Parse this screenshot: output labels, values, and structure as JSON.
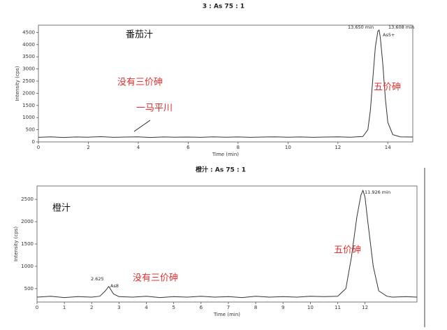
{
  "chart_data": [
    {
      "type": "line",
      "title": "3 : As 75 : 1",
      "x_label": "Time (min)",
      "y_label": "Intensity (cps)",
      "xlim": [
        0,
        15
      ],
      "xticks": [
        0,
        2,
        4,
        6,
        8,
        10,
        12,
        14
      ],
      "ylim": [
        0,
        4800
      ],
      "yticks": [
        0,
        500,
        1000,
        1500,
        2000,
        2500,
        3000,
        3500,
        4000,
        4500
      ],
      "series": [
        {
          "color": "#333333",
          "x": [
            0,
            0.5,
            1,
            1.5,
            2,
            2.5,
            3,
            3.5,
            4,
            4.5,
            5,
            5.5,
            6,
            6.5,
            7,
            7.5,
            8,
            8.5,
            9,
            9.5,
            10,
            10.5,
            11,
            11.5,
            12,
            12.5,
            13,
            13.2,
            13.3,
            13.4,
            13.5,
            13.6,
            13.65,
            13.7,
            13.8,
            13.9,
            14,
            14.2,
            14.5,
            15
          ],
          "values": [
            190,
            210,
            185,
            205,
            195,
            215,
            190,
            200,
            210,
            185,
            205,
            195,
            200,
            190,
            210,
            195,
            205,
            190,
            200,
            210,
            195,
            205,
            190,
            200,
            210,
            195,
            220,
            500,
            1300,
            2600,
            3900,
            4550,
            4600,
            4300,
            3200,
            1800,
            800,
            300,
            210,
            200
          ]
        }
      ],
      "annotations": [
        {
          "text": "番茄汁",
          "color": "#111111"
        },
        {
          "text": "没有三价砷",
          "color": "#e03030"
        },
        {
          "text": "一马平川",
          "color": "#e03030"
        },
        {
          "text": "五价砷",
          "color": "#e03030"
        },
        {
          "text": "13.650 min",
          "color": "#222222"
        },
        {
          "text": "13.608 min",
          "color": "#222222"
        },
        {
          "text": "As5+",
          "color": "#222222"
        }
      ]
    },
    {
      "type": "line",
      "title": "橙汁 : As 75 : 1",
      "x_label": "Time (min)",
      "y_label": "Intensity (cps)",
      "xlim": [
        0,
        13.9
      ],
      "xticks": [
        0,
        1,
        2,
        3,
        4,
        5,
        6,
        7,
        8,
        9,
        10,
        11,
        12
      ],
      "ylim": [
        200,
        2800
      ],
      "yticks": [
        500,
        1000,
        1500,
        2000,
        2500
      ],
      "series": [
        {
          "color": "#333333",
          "x": [
            0,
            0.5,
            1,
            1.5,
            2,
            2.3,
            2.5,
            2.625,
            2.8,
            3,
            3.5,
            4,
            4.5,
            5,
            5.5,
            6,
            6.5,
            7,
            7.5,
            8,
            8.5,
            9,
            9.5,
            10,
            10.5,
            11,
            11.3,
            11.5,
            11.7,
            11.85,
            11.926,
            12,
            12.1,
            12.3,
            12.5,
            12.8,
            13,
            13.5,
            13.9
          ],
          "values": [
            310,
            330,
            300,
            320,
            310,
            330,
            450,
            550,
            380,
            320,
            310,
            330,
            300,
            320,
            310,
            330,
            310,
            320,
            300,
            330,
            310,
            320,
            310,
            330,
            320,
            330,
            500,
            1200,
            2100,
            2600,
            2700,
            2550,
            2000,
            1000,
            450,
            330,
            310,
            320,
            310
          ]
        }
      ],
      "annotations": [
        {
          "text": "橙汁",
          "color": "#111111"
        },
        {
          "text": "五价砷",
          "color": "#e03030"
        },
        {
          "text": "没有三价砷",
          "color": "#e03030"
        },
        {
          "text": "2.625",
          "color": "#222222"
        },
        {
          "text": "As8",
          "color": "#222222"
        },
        {
          "text": "11.926 min",
          "color": "#222222"
        }
      ]
    }
  ]
}
